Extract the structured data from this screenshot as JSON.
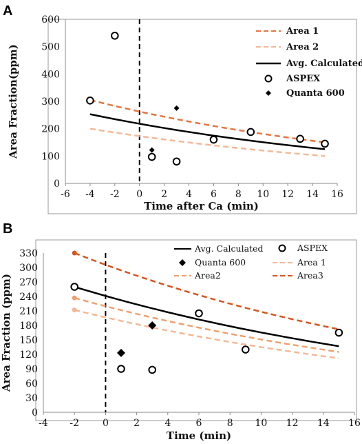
{
  "chart_data": [
    {
      "panel": "A",
      "type": "line",
      "xlabel": "Time after Ca (min)",
      "ylabel": "Area Fraction(ppm)",
      "xlim": [
        -6,
        16
      ],
      "ylim": [
        0,
        600
      ],
      "xticks": [
        -6,
        -4,
        -2,
        0,
        2,
        4,
        6,
        8,
        10,
        12,
        14,
        16
      ],
      "yticks": [
        0,
        100,
        200,
        300,
        400,
        500,
        600
      ],
      "vline_x": 0,
      "legend_position": "top-right",
      "legend": [
        "Area 1",
        "Area 2",
        "Avg. Calculated",
        "ASPEX",
        "Quanta 600"
      ],
      "lines": [
        {
          "name": "Area 1",
          "color": "#E8743B",
          "dash": "dash",
          "x": [
            -4,
            15
          ],
          "y0": 305,
          "y1": 150
        },
        {
          "name": "Area 2",
          "color": "#F5B896",
          "dash": "dash",
          "x": [
            -4,
            15
          ],
          "y0": 200,
          "y1": 100
        },
        {
          "name": "Avg. Calculated",
          "color": "#000000",
          "dash": "solid",
          "x": [
            -4,
            15
          ],
          "y0": 253,
          "y1": 125
        }
      ],
      "scatter": [
        {
          "name": "ASPEX",
          "marker": "open-circle",
          "points": [
            [
              -4,
              303
            ],
            [
              -2,
              540
            ],
            [
              1,
              97
            ],
            [
              3,
              80
            ],
            [
              6,
              160
            ],
            [
              9,
              188
            ],
            [
              13,
              163
            ],
            [
              15,
              145
            ]
          ]
        },
        {
          "name": "Quanta 600",
          "marker": "diamond",
          "points": [
            [
              1,
              122
            ],
            [
              3,
              275
            ]
          ]
        }
      ]
    },
    {
      "panel": "B",
      "type": "line",
      "xlabel": "Time (min)",
      "ylabel": "Area Fraction (ppm)",
      "xlim": [
        -4,
        16
      ],
      "ylim": [
        0,
        330
      ],
      "xticks": [
        -4,
        -2,
        0,
        2,
        4,
        6,
        8,
        10,
        12,
        14,
        16
      ],
      "yticks": [
        0,
        30,
        60,
        90,
        120,
        150,
        180,
        210,
        240,
        270,
        300,
        330
      ],
      "vline_x": 0,
      "legend_position": "top",
      "legend": [
        "Avg. Calculated",
        "ASPEX",
        "Quanta 600",
        "Area 1",
        "Area2",
        "Area3"
      ],
      "lines": [
        {
          "name": "Avg. Calculated",
          "color": "#000000",
          "dash": "solid",
          "x": [
            -2,
            15
          ],
          "y0": 260,
          "y1": 137
        },
        {
          "name": "Area 1",
          "color": "#F5B896",
          "dash": "dash",
          "x": [
            -2,
            15
          ],
          "y0": 212,
          "y1": 112
        },
        {
          "name": "Area2",
          "color": "#F0A06E",
          "dash": "dash",
          "x": [
            -2,
            15
          ],
          "y0": 237,
          "y1": 125
        },
        {
          "name": "Area3",
          "color": "#D9541E",
          "dash": "dash",
          "x": [
            -2,
            15
          ],
          "y0": 330,
          "y1": 172
        }
      ],
      "endpoints": [
        {
          "color": "#D9541E",
          "x": -2,
          "y": 330
        },
        {
          "color": "#F0A06E",
          "x": -2,
          "y": 237
        },
        {
          "color": "#F5B896",
          "x": -2,
          "y": 212
        }
      ],
      "scatter": [
        {
          "name": "ASPEX",
          "marker": "open-circle",
          "points": [
            [
              -2,
              260
            ],
            [
              1,
              90
            ],
            [
              3,
              88
            ],
            [
              6,
              205
            ],
            [
              9,
              130
            ],
            [
              15,
              165
            ]
          ]
        },
        {
          "name": "Quanta 600",
          "marker": "diamond",
          "points": [
            [
              1,
              123
            ],
            [
              3,
              180
            ]
          ]
        }
      ]
    }
  ],
  "panels": {
    "a_label": "A",
    "b_label": "B"
  }
}
